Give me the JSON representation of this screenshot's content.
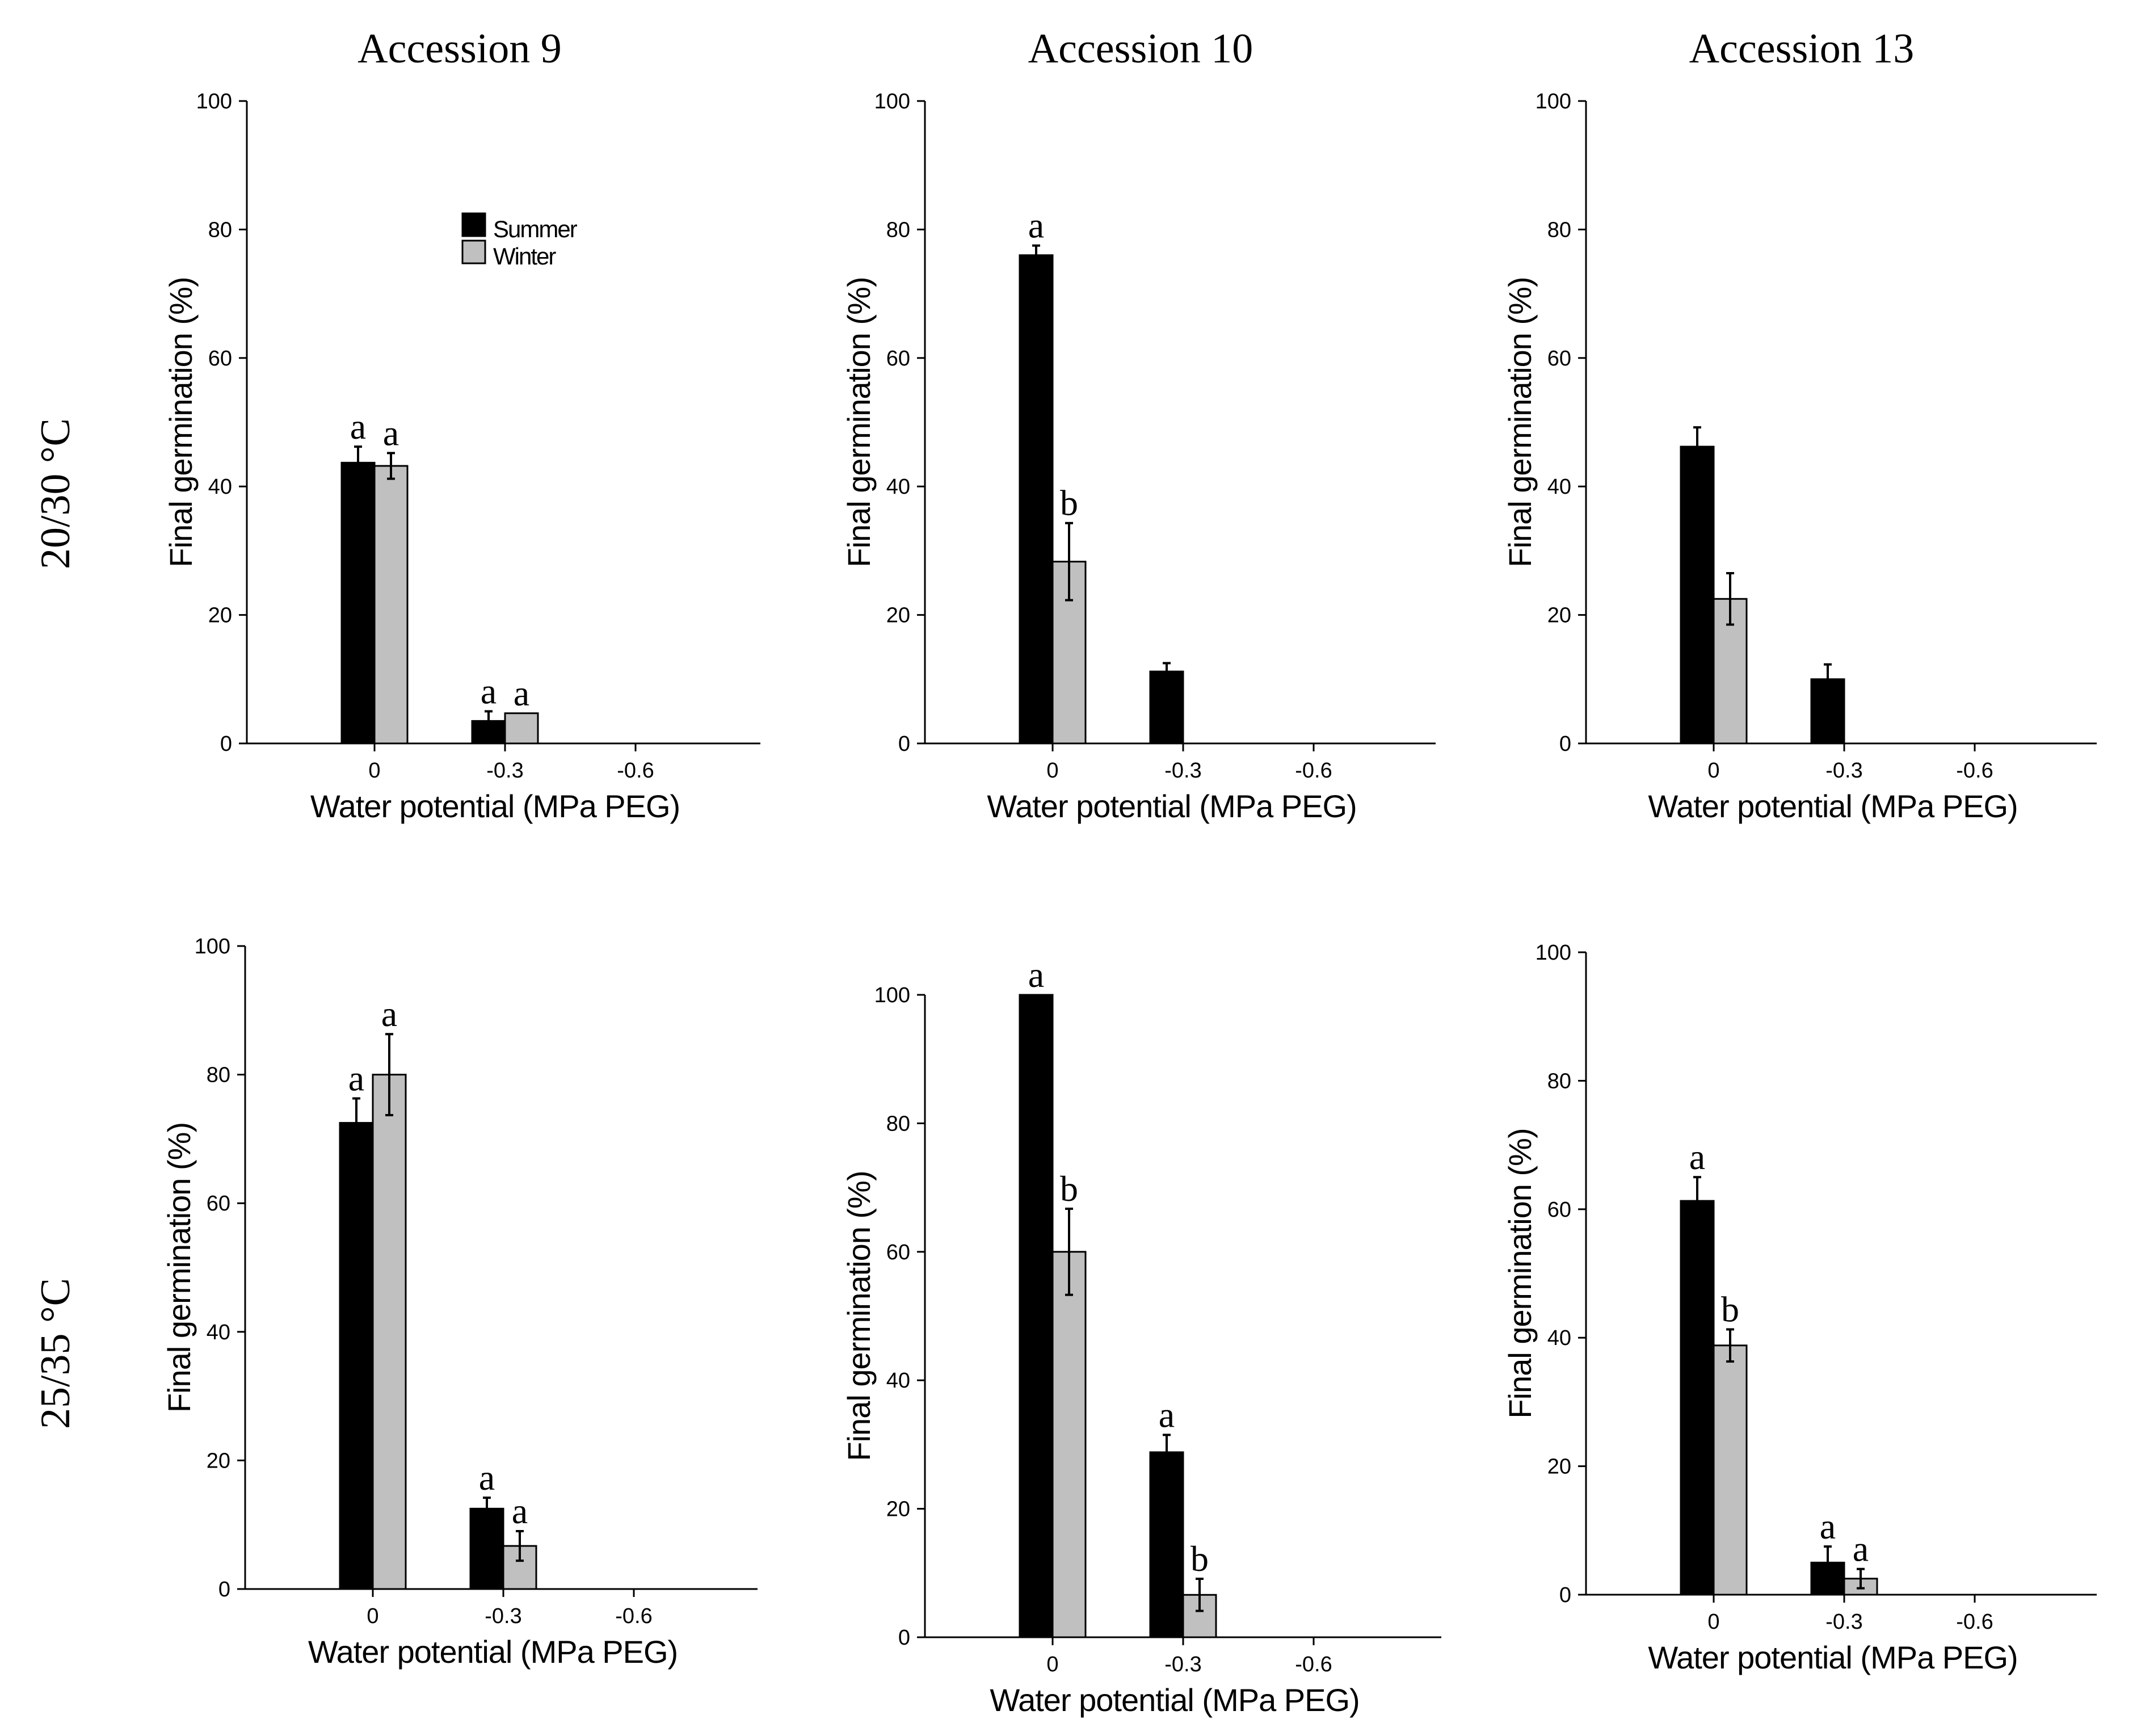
{
  "figure": {
    "column_titles": [
      "Accession 9",
      "Accession 10",
      "Accession 13"
    ],
    "row_labels": [
      "20/30 °C",
      "25/35 °C"
    ],
    "colors": {
      "summer": "#000000",
      "winter": "#c0c0c0",
      "axis": "#000000"
    }
  },
  "chart_data": [
    {
      "type": "bar",
      "accession": "Accession 9",
      "temperature": "20/30 °C",
      "categories": [
        "0",
        "-0.3",
        "-0.6"
      ],
      "xlabel": "Water potential (MPa PEG)",
      "ylabel": "Final germination (%)",
      "ylim": [
        0,
        100
      ],
      "yticks": [
        "0",
        "20",
        "40",
        "60",
        "80",
        "100"
      ],
      "legend": [
        "Summer",
        "Winter"
      ],
      "legend_position": "top-center",
      "series": [
        {
          "name": "Summer",
          "values": [
            43.7,
            3.5,
            0
          ],
          "errors": [
            2.5,
            1.5,
            0
          ],
          "letters": [
            "a",
            "a",
            ""
          ]
        },
        {
          "name": "Winter",
          "values": [
            43.2,
            4.7,
            0
          ],
          "errors": [
            2.0,
            0,
            0
          ],
          "letters": [
            "a",
            "a",
            ""
          ]
        }
      ]
    },
    {
      "type": "bar",
      "accession": "Accession 10",
      "temperature": "20/30 °C",
      "categories": [
        "0",
        "-0.3",
        "-0.6"
      ],
      "xlabel": "Water potential (MPa PEG)",
      "ylabel": "Final germination (%)",
      "ylim": [
        0,
        100
      ],
      "yticks": [
        "0",
        "20",
        "40",
        "60",
        "80",
        "100"
      ],
      "series": [
        {
          "name": "Summer",
          "values": [
            76.0,
            11.2,
            0
          ],
          "errors": [
            1.5,
            1.3,
            0
          ],
          "letters": [
            "a",
            "",
            ""
          ]
        },
        {
          "name": "Winter",
          "values": [
            28.3,
            0,
            0
          ],
          "errors": [
            6.0,
            0,
            0
          ],
          "letters": [
            "b",
            "",
            ""
          ]
        }
      ]
    },
    {
      "type": "bar",
      "accession": "Accession 13",
      "temperature": "20/30 °C",
      "categories": [
        "0",
        "-0.3",
        "-0.6"
      ],
      "xlabel": "Water potential (MPa PEG)",
      "ylabel": "Final germination (%)",
      "ylim": [
        0,
        100
      ],
      "yticks": [
        "0",
        "20",
        "40",
        "60",
        "80",
        "100"
      ],
      "series": [
        {
          "name": "Summer",
          "values": [
            46.2,
            10.0,
            0
          ],
          "errors": [
            3.0,
            2.3,
            0
          ],
          "letters": [
            "",
            "",
            ""
          ]
        },
        {
          "name": "Winter",
          "values": [
            22.5,
            0,
            0
          ],
          "errors": [
            4.0,
            0,
            0
          ],
          "letters": [
            "",
            "",
            ""
          ]
        }
      ]
    },
    {
      "type": "bar",
      "accession": "Accession 9",
      "temperature": "25/35 °C",
      "categories": [
        "0",
        "-0.3",
        "-0.6"
      ],
      "xlabel": "Water potential (MPa PEG)",
      "ylabel": "Final germination (%)",
      "ylim": [
        0,
        100
      ],
      "yticks": [
        "0",
        "20",
        "40",
        "60",
        "80",
        "100"
      ],
      "series": [
        {
          "name": "Summer",
          "values": [
            72.5,
            12.5,
            0
          ],
          "errors": [
            3.8,
            1.7,
            0
          ],
          "letters": [
            "a",
            "a",
            ""
          ]
        },
        {
          "name": "Winter",
          "values": [
            80.0,
            6.7,
            0
          ],
          "errors": [
            6.3,
            2.3,
            0
          ],
          "letters": [
            "a",
            "a",
            ""
          ]
        }
      ]
    },
    {
      "type": "bar",
      "accession": "Accession 10",
      "temperature": "25/35 °C",
      "categories": [
        "0",
        "-0.3",
        "-0.6"
      ],
      "xlabel": "Water potential (MPa PEG)",
      "ylabel": "Final germination (%)",
      "ylim": [
        0,
        100
      ],
      "yticks": [
        "0",
        "20",
        "40",
        "60",
        "80",
        "100"
      ],
      "series": [
        {
          "name": "Summer",
          "values": [
            100.0,
            28.8,
            0
          ],
          "errors": [
            0,
            2.7,
            0
          ],
          "letters": [
            "a",
            "a",
            ""
          ]
        },
        {
          "name": "Winter",
          "values": [
            60.0,
            6.6,
            0
          ],
          "errors": [
            6.7,
            2.5,
            0
          ],
          "letters": [
            "b",
            "b",
            ""
          ]
        }
      ]
    },
    {
      "type": "bar",
      "accession": "Accession 13",
      "temperature": "25/35 °C",
      "categories": [
        "0",
        "-0.3",
        "-0.6"
      ],
      "xlabel": "Water potential (MPa PEG)",
      "ylabel": "Final germination (%)",
      "ylim": [
        0,
        100
      ],
      "yticks": [
        "0",
        "20",
        "40",
        "60",
        "80",
        "100"
      ],
      "series": [
        {
          "name": "Summer",
          "values": [
            61.3,
            5.0,
            0
          ],
          "errors": [
            3.7,
            2.5,
            0
          ],
          "letters": [
            "a",
            "a",
            ""
          ]
        },
        {
          "name": "Winter",
          "values": [
            38.8,
            2.5,
            0
          ],
          "errors": [
            2.5,
            1.5,
            0
          ],
          "letters": [
            "b",
            "a",
            ""
          ]
        }
      ]
    }
  ]
}
